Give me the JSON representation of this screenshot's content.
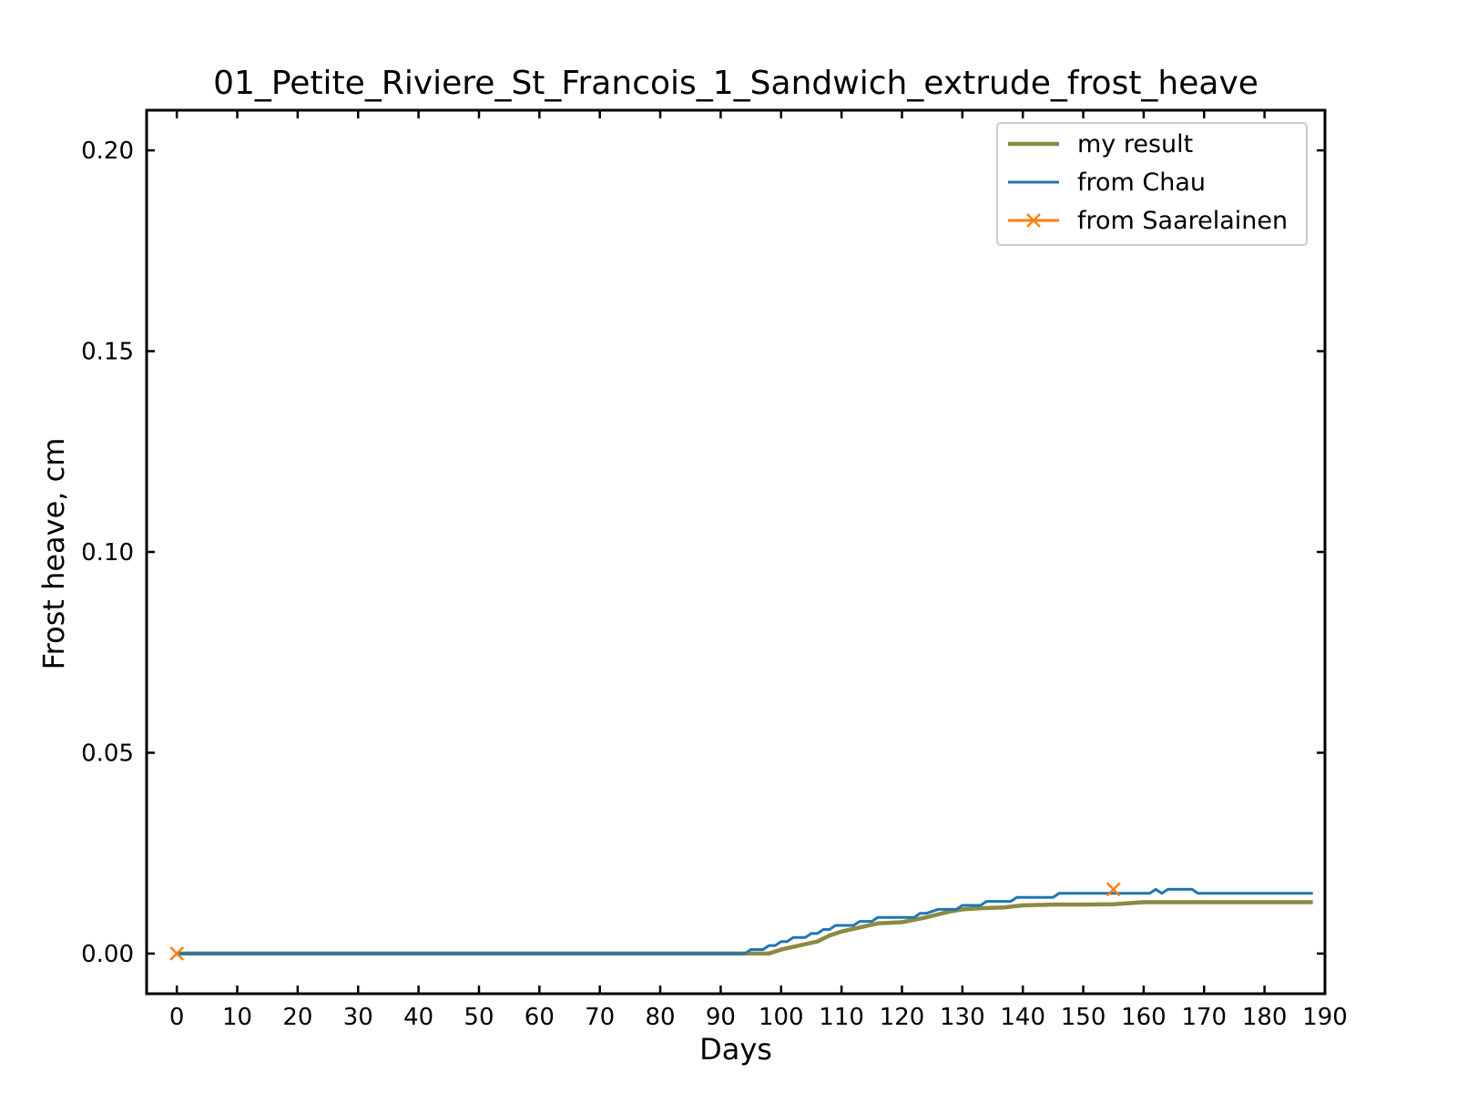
{
  "chart_data": {
    "type": "line",
    "title": "01_Petite_Riviere_St_Francois_1_Sandwich_extrude_frost_heave",
    "xlabel": "Days",
    "ylabel": "Frost heave, cm",
    "xlim": [
      -5,
      190
    ],
    "ylim": [
      -0.01,
      0.21
    ],
    "xticks": [
      0,
      10,
      20,
      30,
      40,
      50,
      60,
      70,
      80,
      90,
      100,
      110,
      120,
      130,
      140,
      150,
      160,
      170,
      180,
      190
    ],
    "yticks": [
      0.0,
      0.05,
      0.1,
      0.15,
      0.2
    ],
    "ytick_labels": [
      "0.00",
      "0.05",
      "0.10",
      "0.15",
      "0.20"
    ],
    "grid": false,
    "legend": "top-right",
    "series": [
      {
        "name": "my result",
        "color": "#8c8a43",
        "marker": "none",
        "x": [
          0,
          94,
          98,
          100,
          103,
          106,
          108,
          110,
          113,
          116,
          120,
          124,
          128,
          130,
          133,
          137,
          140,
          145,
          150,
          155,
          160,
          170,
          188
        ],
        "y": [
          0,
          0,
          0,
          0.001,
          0.002,
          0.003,
          0.0045,
          0.0055,
          0.0065,
          0.0075,
          0.0078,
          0.009,
          0.0105,
          0.011,
          0.0113,
          0.0115,
          0.012,
          0.0122,
          0.0122,
          0.0123,
          0.0128,
          0.0128,
          0.0128
        ]
      },
      {
        "name": "from Chau",
        "color": "#1f77b4",
        "marker": "none",
        "x": [
          0,
          94,
          95,
          97,
          98,
          99,
          100,
          101,
          102,
          103,
          104,
          105,
          106,
          107,
          108,
          109,
          110,
          111,
          112,
          113,
          114,
          115,
          116,
          118,
          120,
          122,
          123,
          124,
          126,
          127,
          129,
          130,
          132,
          133,
          134,
          136,
          138,
          139,
          141,
          143,
          145,
          146,
          148,
          150,
          152,
          154,
          156,
          158,
          160,
          161,
          162,
          163,
          164,
          166,
          168,
          169,
          170,
          175,
          180,
          188
        ],
        "y": [
          0,
          0,
          0.001,
          0.001,
          0.002,
          0.002,
          0.003,
          0.003,
          0.004,
          0.004,
          0.004,
          0.005,
          0.005,
          0.006,
          0.006,
          0.007,
          0.007,
          0.007,
          0.007,
          0.008,
          0.008,
          0.008,
          0.009,
          0.009,
          0.009,
          0.009,
          0.01,
          0.01,
          0.011,
          0.011,
          0.011,
          0.012,
          0.012,
          0.012,
          0.013,
          0.013,
          0.013,
          0.014,
          0.014,
          0.014,
          0.014,
          0.015,
          0.015,
          0.015,
          0.015,
          0.015,
          0.015,
          0.015,
          0.015,
          0.015,
          0.016,
          0.015,
          0.016,
          0.016,
          0.016,
          0.015,
          0.015,
          0.015,
          0.015,
          0.015
        ]
      },
      {
        "name": "from Saarelainen",
        "color": "#ff7f0e",
        "marker": "x",
        "x": [
          0,
          155
        ],
        "y": [
          0,
          0.016
        ]
      }
    ]
  }
}
